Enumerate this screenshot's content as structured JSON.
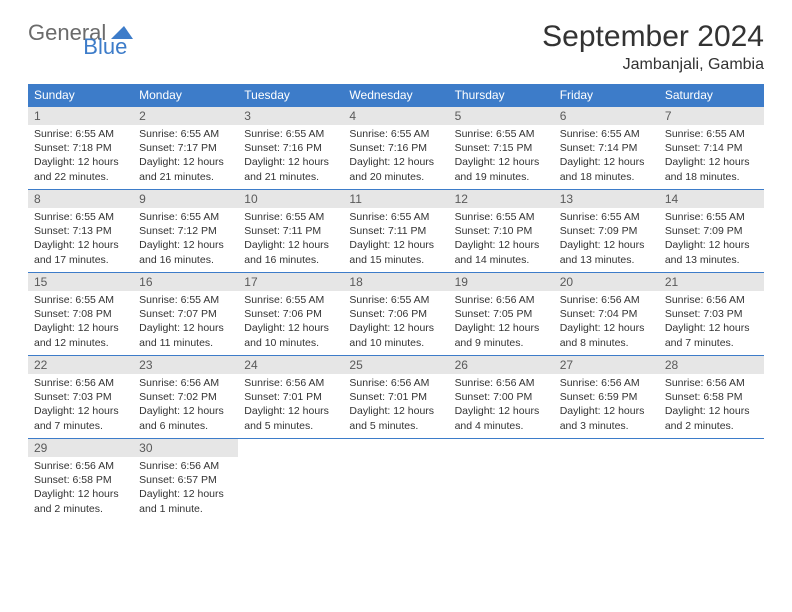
{
  "logo": {
    "text1": "General",
    "text2": "Blue"
  },
  "title": "September 2024",
  "location": "Jambanjali, Gambia",
  "colors": {
    "header_bg": "#3d7cc9",
    "header_fg": "#ffffff",
    "daynum_bg": "#e6e6e6",
    "daynum_fg": "#5a5a5a",
    "body_fg": "#333333",
    "rule": "#3d7cc9",
    "logo_gray": "#6b6b6b",
    "logo_blue": "#3d7cc9"
  },
  "weekdays": [
    "Sunday",
    "Monday",
    "Tuesday",
    "Wednesday",
    "Thursday",
    "Friday",
    "Saturday"
  ],
  "days": [
    {
      "n": 1,
      "sunrise": "6:55 AM",
      "sunset": "7:18 PM",
      "daylight": "12 hours and 22 minutes."
    },
    {
      "n": 2,
      "sunrise": "6:55 AM",
      "sunset": "7:17 PM",
      "daylight": "12 hours and 21 minutes."
    },
    {
      "n": 3,
      "sunrise": "6:55 AM",
      "sunset": "7:16 PM",
      "daylight": "12 hours and 21 minutes."
    },
    {
      "n": 4,
      "sunrise": "6:55 AM",
      "sunset": "7:16 PM",
      "daylight": "12 hours and 20 minutes."
    },
    {
      "n": 5,
      "sunrise": "6:55 AM",
      "sunset": "7:15 PM",
      "daylight": "12 hours and 19 minutes."
    },
    {
      "n": 6,
      "sunrise": "6:55 AM",
      "sunset": "7:14 PM",
      "daylight": "12 hours and 18 minutes."
    },
    {
      "n": 7,
      "sunrise": "6:55 AM",
      "sunset": "7:14 PM",
      "daylight": "12 hours and 18 minutes."
    },
    {
      "n": 8,
      "sunrise": "6:55 AM",
      "sunset": "7:13 PM",
      "daylight": "12 hours and 17 minutes."
    },
    {
      "n": 9,
      "sunrise": "6:55 AM",
      "sunset": "7:12 PM",
      "daylight": "12 hours and 16 minutes."
    },
    {
      "n": 10,
      "sunrise": "6:55 AM",
      "sunset": "7:11 PM",
      "daylight": "12 hours and 16 minutes."
    },
    {
      "n": 11,
      "sunrise": "6:55 AM",
      "sunset": "7:11 PM",
      "daylight": "12 hours and 15 minutes."
    },
    {
      "n": 12,
      "sunrise": "6:55 AM",
      "sunset": "7:10 PM",
      "daylight": "12 hours and 14 minutes."
    },
    {
      "n": 13,
      "sunrise": "6:55 AM",
      "sunset": "7:09 PM",
      "daylight": "12 hours and 13 minutes."
    },
    {
      "n": 14,
      "sunrise": "6:55 AM",
      "sunset": "7:09 PM",
      "daylight": "12 hours and 13 minutes."
    },
    {
      "n": 15,
      "sunrise": "6:55 AM",
      "sunset": "7:08 PM",
      "daylight": "12 hours and 12 minutes."
    },
    {
      "n": 16,
      "sunrise": "6:55 AM",
      "sunset": "7:07 PM",
      "daylight": "12 hours and 11 minutes."
    },
    {
      "n": 17,
      "sunrise": "6:55 AM",
      "sunset": "7:06 PM",
      "daylight": "12 hours and 10 minutes."
    },
    {
      "n": 18,
      "sunrise": "6:55 AM",
      "sunset": "7:06 PM",
      "daylight": "12 hours and 10 minutes."
    },
    {
      "n": 19,
      "sunrise": "6:56 AM",
      "sunset": "7:05 PM",
      "daylight": "12 hours and 9 minutes."
    },
    {
      "n": 20,
      "sunrise": "6:56 AM",
      "sunset": "7:04 PM",
      "daylight": "12 hours and 8 minutes."
    },
    {
      "n": 21,
      "sunrise": "6:56 AM",
      "sunset": "7:03 PM",
      "daylight": "12 hours and 7 minutes."
    },
    {
      "n": 22,
      "sunrise": "6:56 AM",
      "sunset": "7:03 PM",
      "daylight": "12 hours and 7 minutes."
    },
    {
      "n": 23,
      "sunrise": "6:56 AM",
      "sunset": "7:02 PM",
      "daylight": "12 hours and 6 minutes."
    },
    {
      "n": 24,
      "sunrise": "6:56 AM",
      "sunset": "7:01 PM",
      "daylight": "12 hours and 5 minutes."
    },
    {
      "n": 25,
      "sunrise": "6:56 AM",
      "sunset": "7:01 PM",
      "daylight": "12 hours and 5 minutes."
    },
    {
      "n": 26,
      "sunrise": "6:56 AM",
      "sunset": "7:00 PM",
      "daylight": "12 hours and 4 minutes."
    },
    {
      "n": 27,
      "sunrise": "6:56 AM",
      "sunset": "6:59 PM",
      "daylight": "12 hours and 3 minutes."
    },
    {
      "n": 28,
      "sunrise": "6:56 AM",
      "sunset": "6:58 PM",
      "daylight": "12 hours and 2 minutes."
    },
    {
      "n": 29,
      "sunrise": "6:56 AM",
      "sunset": "6:58 PM",
      "daylight": "12 hours and 2 minutes."
    },
    {
      "n": 30,
      "sunrise": "6:56 AM",
      "sunset": "6:57 PM",
      "daylight": "12 hours and 1 minute."
    }
  ],
  "first_weekday_index": 0,
  "labels": {
    "sunrise": "Sunrise:",
    "sunset": "Sunset:",
    "daylight": "Daylight:"
  }
}
